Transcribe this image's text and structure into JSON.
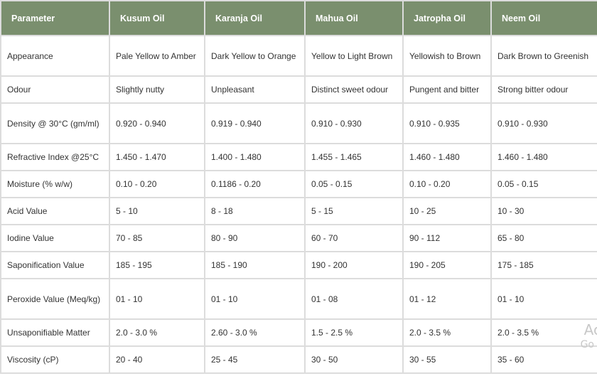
{
  "table": {
    "headers": [
      "Parameter",
      "Kusum Oil",
      "Karanja Oil",
      "Mahua Oil",
      "Jatropha Oil",
      "Neem Oil"
    ],
    "rows": [
      [
        "Appearance",
        "Pale Yellow to Amber",
        "Dark Yellow to Orange",
        "Yellow to Light Brown",
        "Yellowish to Brown",
        "Dark Brown to Greenish"
      ],
      [
        "Odour",
        "Slightly nutty",
        "Unpleasant",
        "Distinct sweet odour",
        "Pungent and bitter",
        "Strong bitter odour"
      ],
      [
        "Density @ 30°C (gm/ml)",
        "0.920 - 0.940",
        "0.919 - 0.940",
        "0.910 - 0.930",
        "0.910 - 0.935",
        "0.910 - 0.930"
      ],
      [
        "Refractive Index @25°C",
        "1.450 - 1.470",
        "1.400 - 1.480",
        "1.455 - 1.465",
        "1.460 - 1.480",
        "1.460 - 1.480"
      ],
      [
        "Moisture (% w/w)",
        "0.10 - 0.20",
        "0.1186 - 0.20",
        "0.05 - 0.15",
        "0.10 - 0.20",
        "0.05 - 0.15"
      ],
      [
        "Acid Value",
        "5 - 10",
        "8 - 18",
        "5 - 15",
        "10 - 25",
        "10 - 30"
      ],
      [
        "Iodine Value",
        "70 - 85",
        "80 - 90",
        "60 - 70",
        "90 - 112",
        "65 - 80"
      ],
      [
        "Saponification Value",
        "185 - 195",
        "185 - 190",
        "190 - 200",
        "190 - 205",
        "175 - 185"
      ],
      [
        "Peroxide Value (Meq/kg)",
        "01 - 10",
        "01 - 10",
        "01 - 08",
        "01 - 12",
        "01 - 10"
      ],
      [
        "Unsaponifiable Matter",
        "2.0 - 3.0 %",
        "2.60 - 3.0 %",
        "1.5 - 2.5 %",
        "2.0 - 3.5 %",
        "2.0 - 3.5 %"
      ],
      [
        "Viscosity (cP)",
        "20 - 40",
        "25 - 45",
        "30 - 50",
        "30 - 55",
        "35 - 60"
      ]
    ]
  },
  "watermark": {
    "line1": "Ac",
    "line2": "Go"
  }
}
